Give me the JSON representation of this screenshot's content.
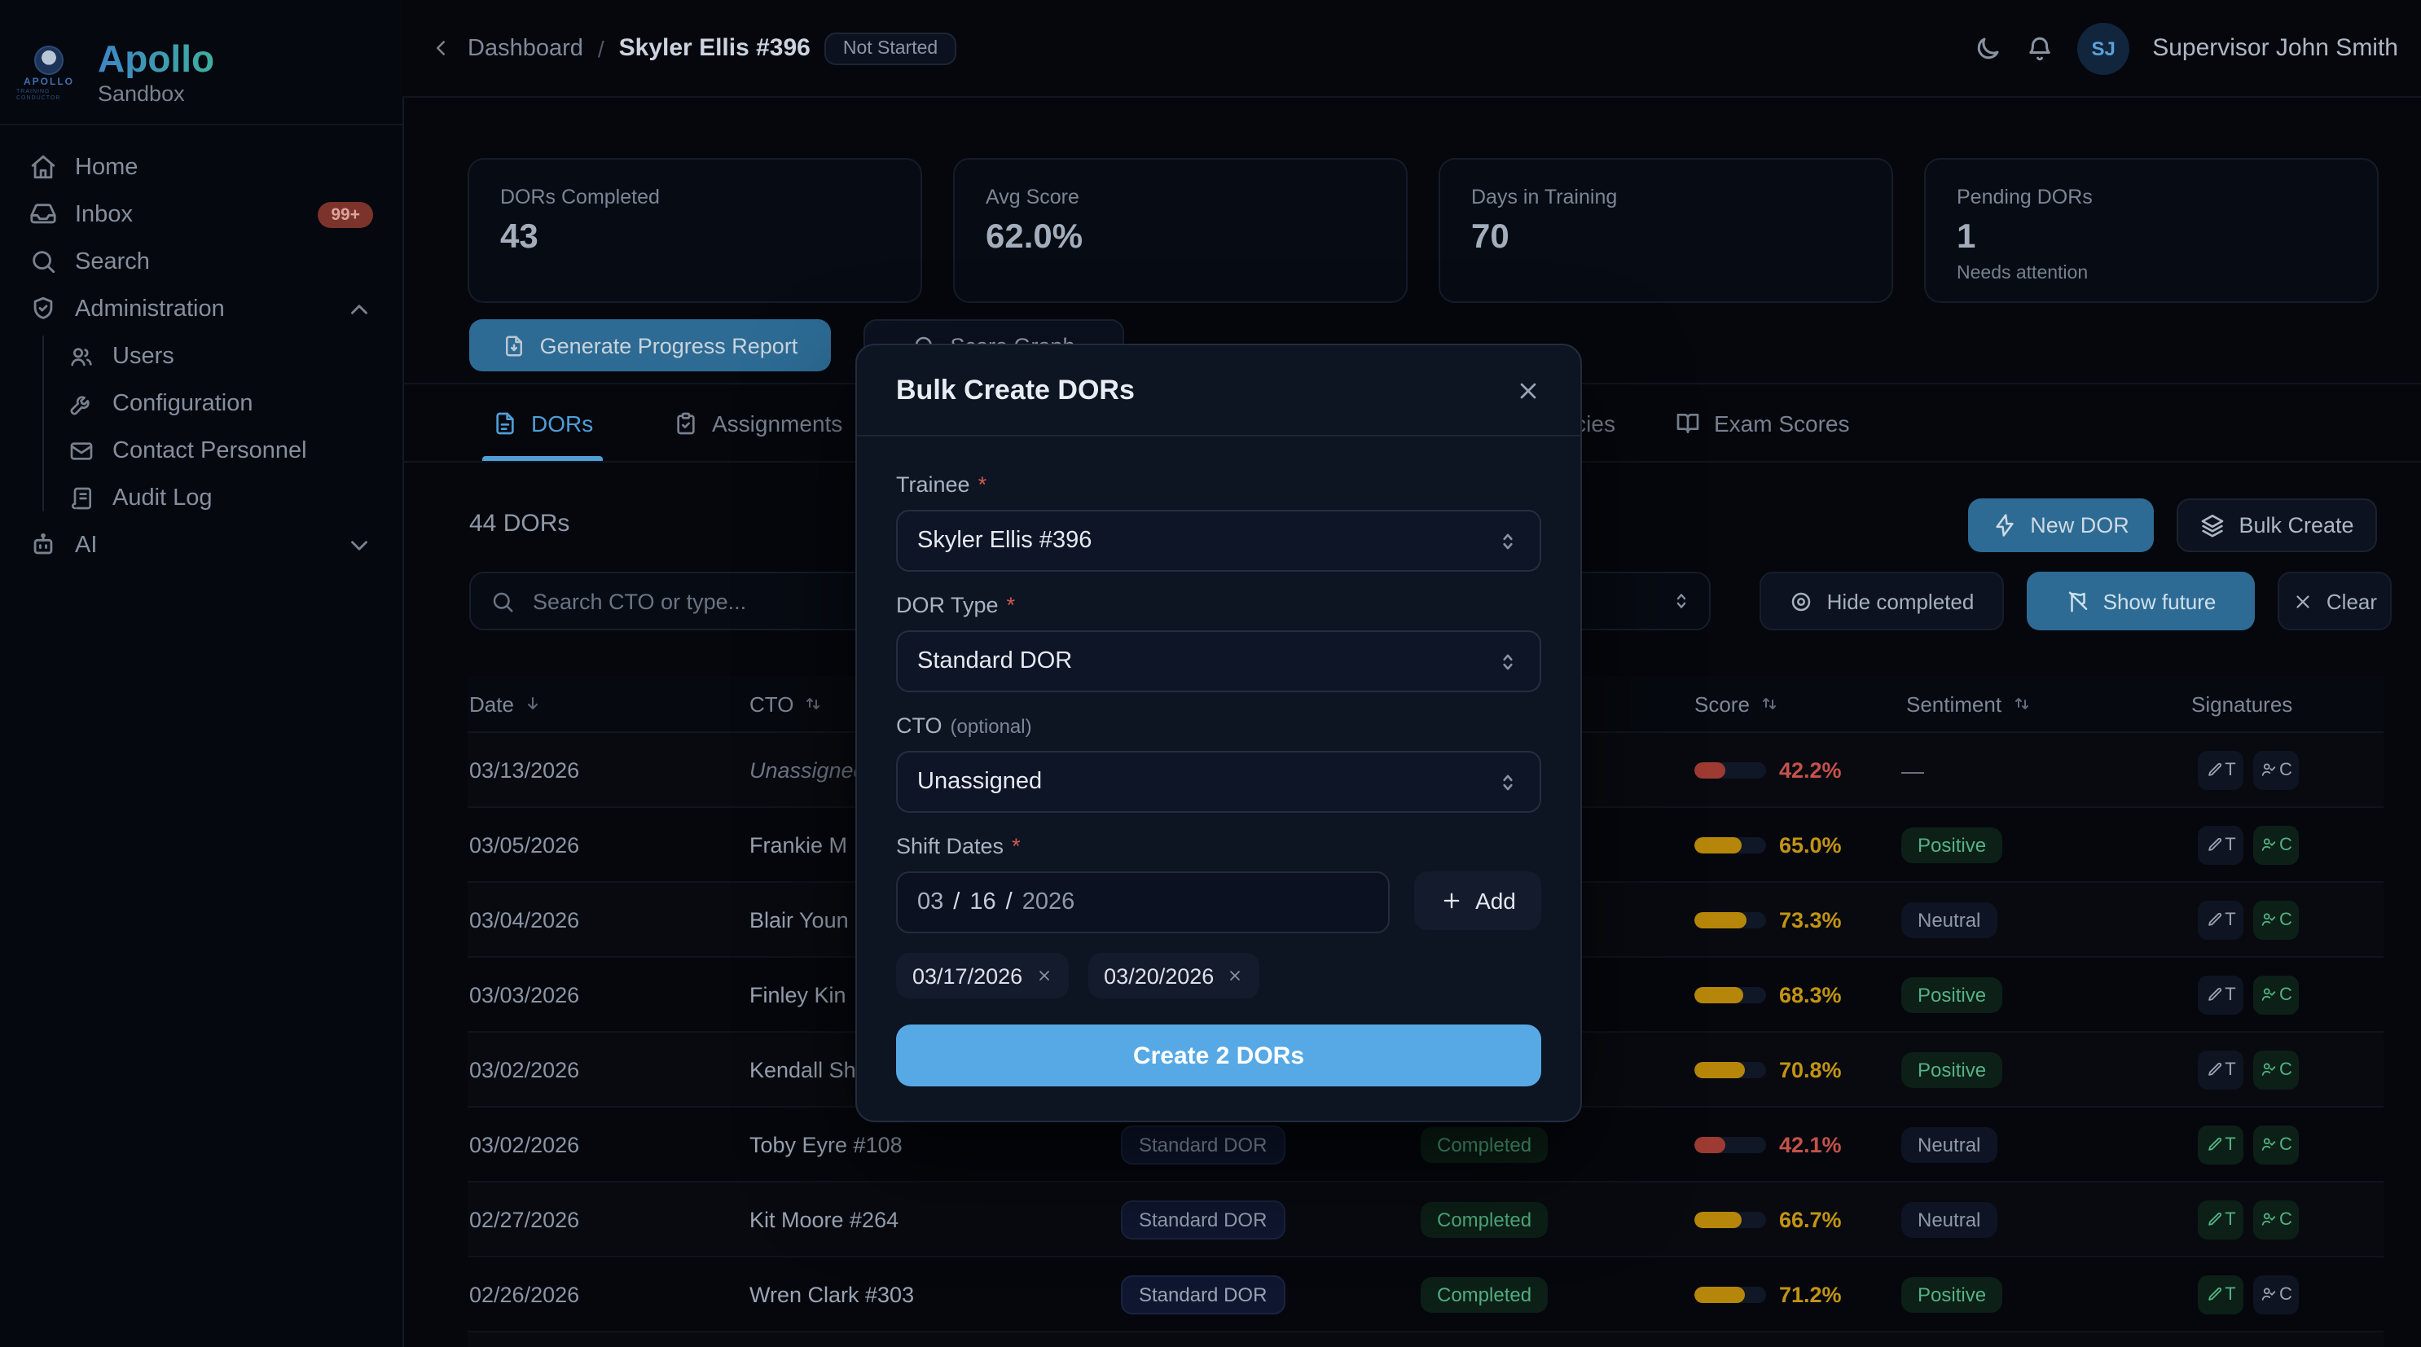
{
  "brand": {
    "title": "Apollo",
    "subtitle": "Sandbox",
    "logo_word": "APOLLO",
    "logo_micro": "TRAINING CONDUCTOR"
  },
  "sidebar": {
    "items": [
      {
        "label": "Home",
        "icon": "home-icon"
      },
      {
        "label": "Inbox",
        "icon": "inbox-icon",
        "badge": "99+"
      },
      {
        "label": "Search",
        "icon": "search-icon"
      },
      {
        "label": "Administration",
        "icon": "shield-check-icon",
        "chevron": "chevron-up-icon"
      }
    ],
    "admin_children": [
      {
        "label": "Users",
        "icon": "users-icon"
      },
      {
        "label": "Configuration",
        "icon": "wrench-icon"
      },
      {
        "label": "Contact Personnel",
        "icon": "mail-icon"
      },
      {
        "label": "Audit Log",
        "icon": "scroll-icon"
      }
    ],
    "ai_item": {
      "label": "AI",
      "icon": "bot-icon",
      "chevron": "chevron-down-icon"
    }
  },
  "header": {
    "breadcrumb_parent": "Dashboard",
    "breadcrumb_separator": "/",
    "breadcrumb_current": "Skyler Ellis #396",
    "status_badge": "Not Started",
    "user_initials": "SJ",
    "user_name": "Supervisor John Smith"
  },
  "stats": [
    {
      "label": "DORs Completed",
      "value": "43",
      "note": ""
    },
    {
      "label": "Avg Score",
      "value": "62.0%",
      "note": ""
    },
    {
      "label": "Days in Training",
      "value": "70",
      "note": ""
    },
    {
      "label": "Pending DORs",
      "value": "1",
      "note": "Needs attention"
    }
  ],
  "actions": {
    "generate_report": "Generate Progress Report",
    "hidden_button": "Score Graph"
  },
  "tabs": [
    {
      "label": "DORs",
      "icon": "file-text-icon",
      "active": true
    },
    {
      "label": "Assignments",
      "icon": "clipboard-check-icon",
      "active": false
    },
    {
      "label": "Competencies",
      "icon": "clipboard-check-icon",
      "active": false
    },
    {
      "label": "Exam Scores",
      "icon": "book-open-icon",
      "active": false
    }
  ],
  "dor_section": {
    "count_label": "44 DORs",
    "search_placeholder": "Search CTO or type...",
    "new_dor": "New DOR",
    "bulk_create": "Bulk Create",
    "hide_completed": "Hide completed",
    "show_future": "Show future",
    "clear": "Clear"
  },
  "table": {
    "columns": [
      {
        "label": "Date",
        "sort": "down"
      },
      {
        "label": "CTO",
        "sort": "both"
      },
      {
        "label": "Score",
        "sort": "both"
      },
      {
        "label": "Sentiment",
        "sort": "both"
      },
      {
        "label": "Signatures",
        "sort": "none"
      }
    ],
    "rows": [
      {
        "date": "03/13/2026",
        "cto": "Unassigned",
        "unassigned": true,
        "type": "",
        "status": "",
        "score": 42.2,
        "score_label": "42.2%",
        "score_color": "red",
        "sentiment": "—",
        "sentiment_kind": "none",
        "sig_t": false,
        "sig_c": false
      },
      {
        "date": "03/05/2026",
        "cto": "Frankie M",
        "unassigned": false,
        "type": "",
        "status": "",
        "score": 65.0,
        "score_label": "65.0%",
        "score_color": "gold",
        "sentiment": "Positive",
        "sentiment_kind": "positive",
        "sig_t": false,
        "sig_c": true
      },
      {
        "date": "03/04/2026",
        "cto": "Blair Youn",
        "unassigned": false,
        "type": "",
        "status": "",
        "score": 73.3,
        "score_label": "73.3%",
        "score_color": "gold",
        "sentiment": "Neutral",
        "sentiment_kind": "neutral",
        "sig_t": false,
        "sig_c": true
      },
      {
        "date": "03/03/2026",
        "cto": "Finley Kin",
        "unassigned": false,
        "type": "",
        "status": "",
        "score": 68.3,
        "score_label": "68.3%",
        "score_color": "gold",
        "sentiment": "Positive",
        "sentiment_kind": "positive",
        "sig_t": false,
        "sig_c": true
      },
      {
        "date": "03/02/2026",
        "cto": "Kendall Sh",
        "unassigned": false,
        "type": "",
        "status": "",
        "score": 70.8,
        "score_label": "70.8%",
        "score_color": "gold",
        "sentiment": "Positive",
        "sentiment_kind": "positive",
        "sig_t": false,
        "sig_c": true
      },
      {
        "date": "03/02/2026",
        "cto": "Toby Eyre #108",
        "unassigned": false,
        "type": "Standard DOR",
        "status": "Completed",
        "score": 42.1,
        "score_label": "42.1%",
        "score_color": "red",
        "sentiment": "Neutral",
        "sentiment_kind": "neutral",
        "sig_t": true,
        "sig_c": true
      },
      {
        "date": "02/27/2026",
        "cto": "Kit Moore #264",
        "unassigned": false,
        "type": "Standard DOR",
        "status": "Completed",
        "score": 66.7,
        "score_label": "66.7%",
        "score_color": "gold",
        "sentiment": "Neutral",
        "sentiment_kind": "neutral",
        "sig_t": true,
        "sig_c": true
      },
      {
        "date": "02/26/2026",
        "cto": "Wren Clark #303",
        "unassigned": false,
        "type": "Standard DOR",
        "status": "Completed",
        "score": 71.2,
        "score_label": "71.2%",
        "score_color": "gold",
        "sentiment": "Positive",
        "sentiment_kind": "positive",
        "sig_t": true,
        "sig_c": false
      },
      {
        "date": "02/25/2026",
        "cto": "Wren Clark #303",
        "unassigned": false,
        "type": "Standard DOR",
        "status": "Completed",
        "score": 70.0,
        "score_label": "70.0%",
        "score_color": "gold",
        "sentiment": "Positive",
        "sentiment_kind": "positive",
        "sig_t": true,
        "sig_c": true
      }
    ],
    "signature_t_label": "T",
    "signature_c_label": "C"
  },
  "modal": {
    "title": "Bulk Create DORs",
    "trainee_label": "Trainee",
    "trainee_required": "*",
    "trainee_value": "Skyler Ellis #396",
    "dor_type_label": "DOR Type",
    "dor_type_required": "*",
    "dor_type_value": "Standard DOR",
    "cto_label": "CTO",
    "cto_optional": "(optional)",
    "cto_value": "Unassigned",
    "shift_dates_label": "Shift Dates",
    "shift_dates_required": "*",
    "date_month": "03",
    "date_slash": "/",
    "date_day": "16",
    "date_year": "2026",
    "add_button": "Add",
    "chips": [
      {
        "label": "03/17/2026"
      },
      {
        "label": "03/20/2026"
      }
    ],
    "submit": "Create 2 DORs"
  },
  "colors": {
    "accent_blue": "#2d6b94",
    "bright_blue": "#57a9e5",
    "tab_active": "#4f9ed8",
    "score_red": "#c4524a",
    "score_gold": "#c29414",
    "positive_green": "#56b183",
    "badge_red_bg": "#7c332b",
    "modal_bg": "#0d1422",
    "page_bg": "#05070d"
  }
}
